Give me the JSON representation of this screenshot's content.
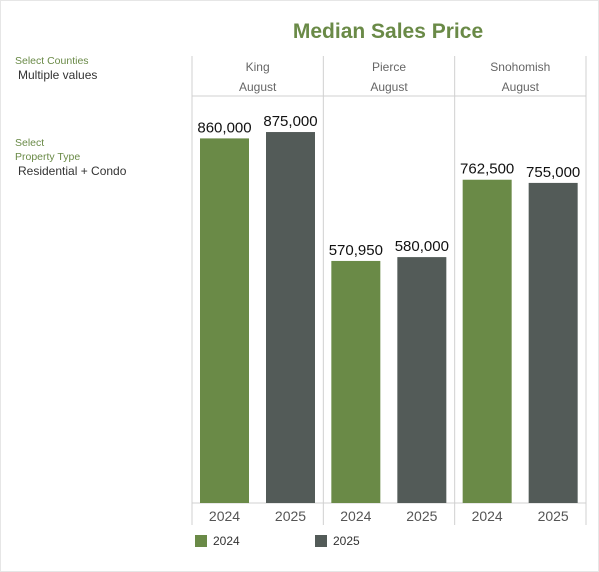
{
  "title": "Median Sales Price",
  "filters": {
    "counties": {
      "label": "Select Counties",
      "value": "Multiple values"
    },
    "property_type": {
      "label_line1": "Select",
      "label_line2": "Property Type",
      "value": "Residential + Condo"
    }
  },
  "colors": {
    "y2024": "#6a8a47",
    "y2025": "#535b58"
  },
  "chart_data": {
    "type": "bar",
    "title": "Median Sales Price",
    "groups": [
      {
        "county": "King",
        "month": "August",
        "values": [
          860000,
          875000
        ],
        "labels": [
          "860,000",
          "875,000"
        ]
      },
      {
        "county": "Pierce",
        "month": "August",
        "values": [
          570950,
          580000
        ],
        "labels": [
          "570,950",
          "580,000"
        ]
      },
      {
        "county": "Snohomish",
        "month": "August",
        "values": [
          762500,
          755000
        ],
        "labels": [
          "762,500",
          "755,000"
        ]
      }
    ],
    "categories": [
      "2024",
      "2025"
    ],
    "series": [
      {
        "name": "2024"
      },
      {
        "name": "2025"
      }
    ],
    "ylim": [
      0,
      960000
    ],
    "legend": "bottom"
  }
}
